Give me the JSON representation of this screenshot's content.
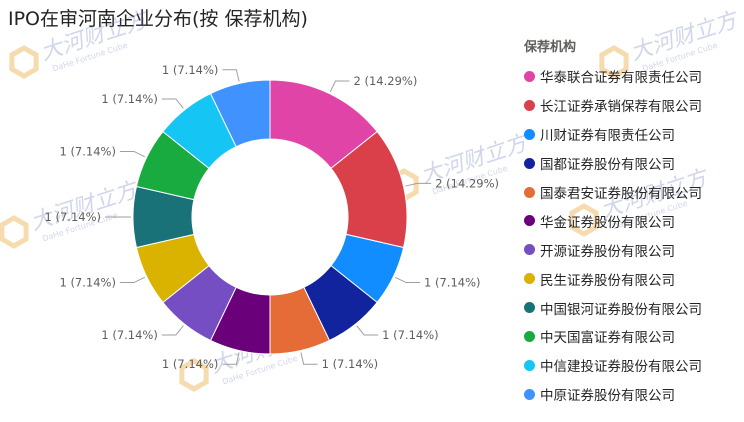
{
  "chart_data": {
    "type": "pie",
    "variant": "donut",
    "title": "IPO在审河南企业分布(按 保荐机构)",
    "legend_title": "保荐机构",
    "legend_position": "right",
    "slices": [
      {
        "label": "华泰联合证券有限责任公司",
        "value": 2,
        "data_label": "2 (14.29%)",
        "color": "#e044a7"
      },
      {
        "label": "长江证券承销保荐有限公司",
        "value": 2,
        "data_label": "2 (14.29%)",
        "color": "#d9404a"
      },
      {
        "label": "川财证券有限责任公司",
        "value": 1,
        "data_label": "1 (7.14%)",
        "color": "#118dff"
      },
      {
        "label": "国都证券股份有限公司",
        "value": 1,
        "data_label": "1 (7.14%)",
        "color": "#12239e"
      },
      {
        "label": "国泰君安证券股份有限公司",
        "value": 1,
        "data_label": "1 (7.14%)",
        "color": "#e66c37"
      },
      {
        "label": "华金证券股份有限公司",
        "value": 1,
        "data_label": "1 (7.14%)",
        "color": "#6b007b"
      },
      {
        "label": "开源证券股份有限公司",
        "value": 1,
        "data_label": "1 (7.14%)",
        "color": "#744ec2"
      },
      {
        "label": "民生证券股份有限公司",
        "value": 1,
        "data_label": "1 (7.14%)",
        "color": "#d9b300"
      },
      {
        "label": "中国银河证券股份有限公司",
        "value": 1,
        "data_label": "1 (7.14%)",
        "color": "#197278"
      },
      {
        "label": "中天国富证券有限公司",
        "value": 1,
        "data_label": "1 (7.14%)",
        "color": "#1aab40"
      },
      {
        "label": "中信建投证券股份有限公司",
        "value": 1,
        "data_label": "1 (7.14%)",
        "color": "#15c6f4"
      },
      {
        "label": "中原证券股份有限公司",
        "value": 1,
        "data_label": "1 (7.14%)",
        "color": "#4092ff"
      }
    ]
  },
  "watermark": {
    "text": "大河财立方",
    "subtext": "DaHe Fortune Cube"
  }
}
